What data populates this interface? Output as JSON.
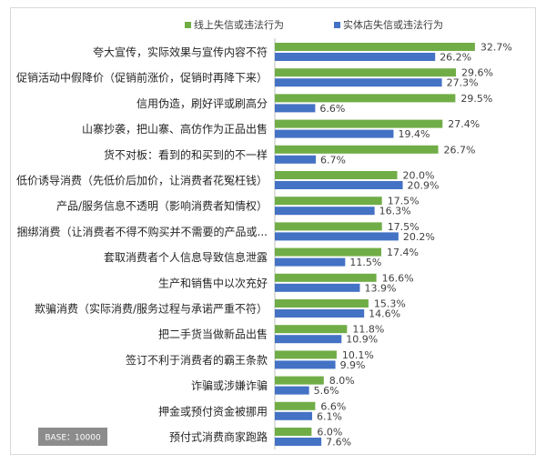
{
  "chart_data": {
    "type": "bar",
    "orientation": "horizontal",
    "categories": [
      "夸大宣传，实际效果与宣传内容不符",
      "促销活动中假降价（促销前涨价，促销时再降下来）",
      "信用伪造，刷好评或刷高分",
      "山寨抄袭，把山寨、高仿作为正品出售",
      "货不对板：看到的和买到的不一样",
      "低价诱导消费（先低价后加价，让消费者花冤枉钱）",
      "产品/服务信息不透明（影响消费者知情权）",
      "捆绑消费（让消费者不得不购买并不需要的产品或...",
      "套取消费者个人信息导致信息泄露",
      "生产和销售中以次充好",
      "欺骗消费（实际消费/服务过程与承诺严重不符）",
      "把二手货当做新品出售",
      "签订不利于消费者的霸王条款",
      "诈骗或涉嫌诈骗",
      "押金或预付资金被挪用",
      "预付式消费商家跑路"
    ],
    "series": [
      {
        "name": "线上失信或违法行为",
        "color": "#70ad47",
        "values": [
          32.7,
          29.6,
          29.5,
          27.4,
          26.7,
          20.0,
          17.5,
          17.5,
          17.4,
          16.6,
          15.3,
          11.8,
          10.1,
          8.0,
          6.6,
          6.0
        ]
      },
      {
        "name": "实体店失信或违法行为",
        "color": "#4472c4",
        "values": [
          26.2,
          27.3,
          6.6,
          19.4,
          6.7,
          20.9,
          16.3,
          20.2,
          11.5,
          13.9,
          14.6,
          10.9,
          9.9,
          5.6,
          6.1,
          7.6
        ]
      }
    ],
    "unit": "%",
    "xlim": [
      0,
      40
    ],
    "legend": "top",
    "grid": false
  },
  "base_note": "BASE：10000"
}
